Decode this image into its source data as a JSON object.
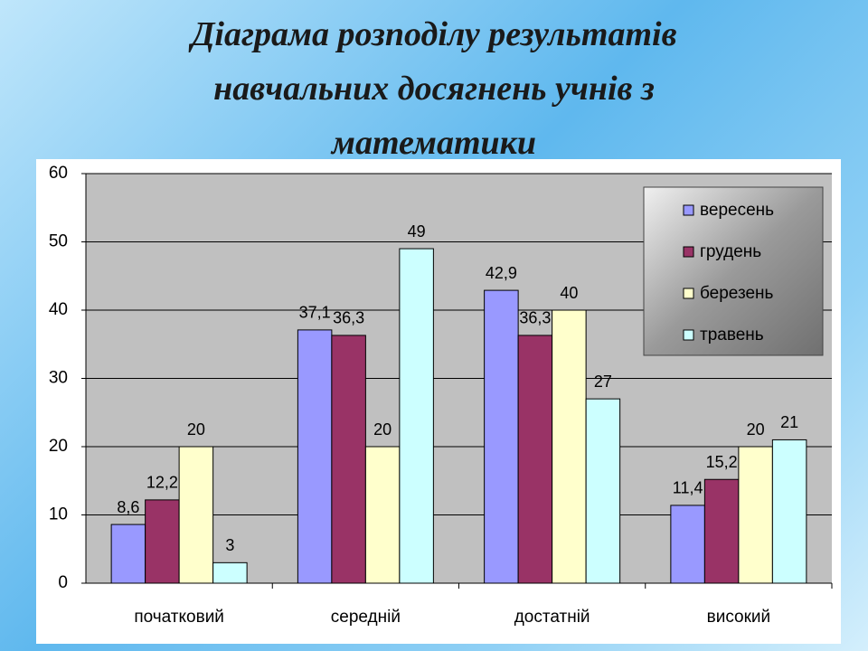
{
  "chart_data": {
    "type": "bar",
    "title": "Діаграма розподілу результатів навчальних досягнень учнів з математики",
    "categories": [
      "початковий",
      "середній",
      "достатній",
      "високий"
    ],
    "series": [
      {
        "name": "вересень",
        "color": "#9999ff",
        "values": [
          8.6,
          37.1,
          42.9,
          11.4
        ],
        "value_labels": [
          "8,6",
          "37,1",
          "42,9",
          "11,4"
        ]
      },
      {
        "name": "грудень",
        "color": "#993366",
        "values": [
          12.2,
          36.3,
          36.3,
          15.2
        ],
        "value_labels": [
          "12,2",
          "36,3",
          "36,3",
          "15,2"
        ]
      },
      {
        "name": "березень",
        "color": "#ffffcc",
        "values": [
          20,
          20,
          40,
          20
        ]
      },
      {
        "name": "травень",
        "color": "#ccffff",
        "values": [
          3,
          49,
          27,
          21
        ]
      }
    ],
    "ylim": [
      0,
      60
    ],
    "yticks": [
      0,
      10,
      20,
      30,
      40,
      50,
      60
    ],
    "grid": true,
    "legend": "top-right"
  }
}
